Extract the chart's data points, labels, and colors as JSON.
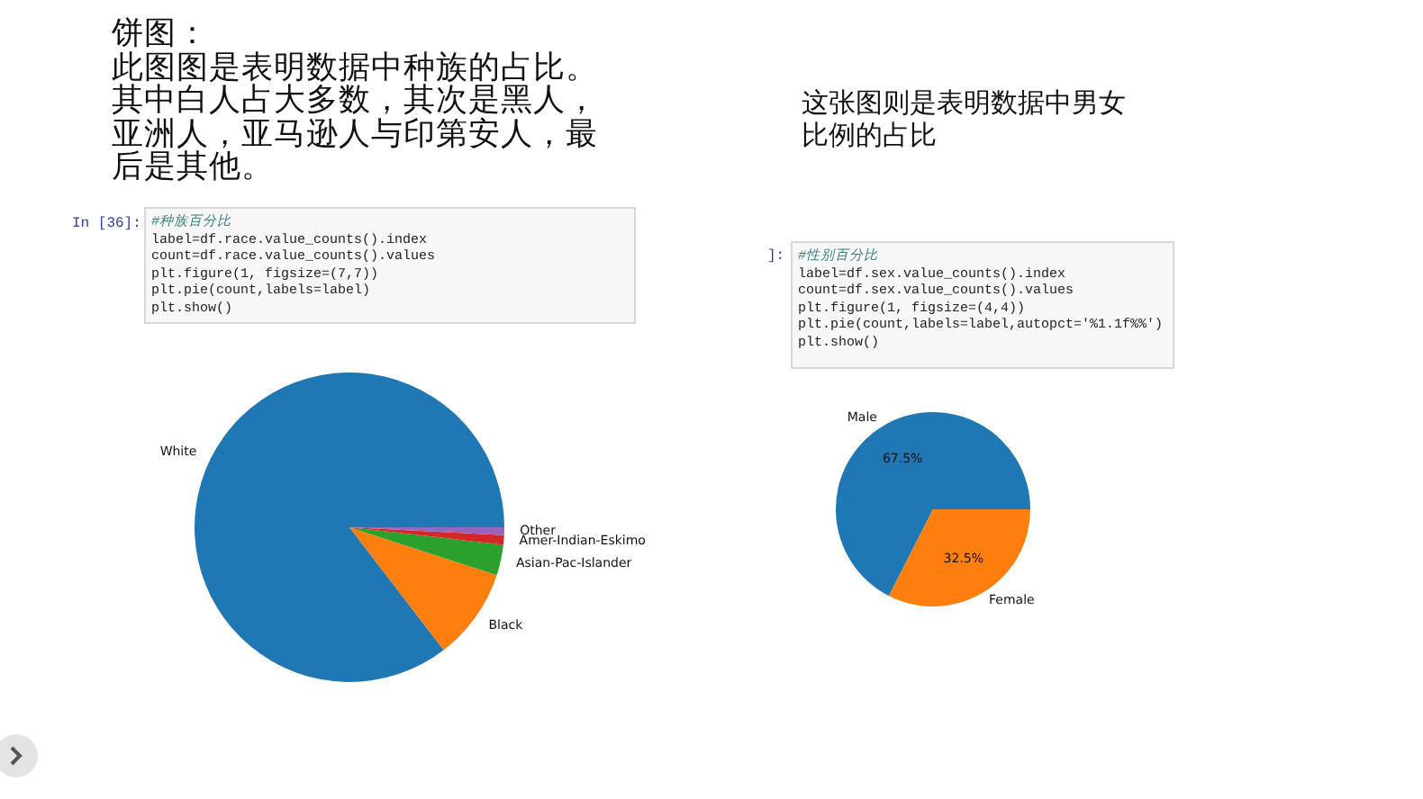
{
  "chart_data": [
    {
      "type": "pie",
      "title": "饼图：",
      "subtitle": "此图图是表明数据中种族的占比。其中白人占大多数，其次是黑人，亚洲人，亚马逊人与印第安人，最后是其他。",
      "annotations": [
        "In [36]:",
        "#种族百分比\nlabel=df.race.value_counts().index\ncount=df.race.value_counts().values\nplt.figure(1, figsize=(7,7))\nplt.pie(count,labels=label)\nplt.show()"
      ],
      "categories": [
        "White",
        "Black",
        "Asian-Pac-Islander",
        "Amer-Indian-Eskimo",
        "Other"
      ],
      "values": [
        85.4,
        9.6,
        3.2,
        1.0,
        0.8
      ],
      "colors": [
        "#1f77b4",
        "#ff7f0e",
        "#2ca02c",
        "#d62728",
        "#9467bd"
      ]
    },
    {
      "type": "pie",
      "title": "这张图则是表明数据中男女比例的占比",
      "annotations": [
        "]:",
        "#性别百分比\nlabel=df.sex.value_counts().index\ncount=df.sex.value_counts().values\nplt.figure(1, figsize=(4,4))\nplt.pie(count,labels=label,autopct='%1.1f%%')\nplt.show()"
      ],
      "categories": [
        "Male",
        "Female"
      ],
      "values": [
        67.5,
        32.5
      ],
      "colors": [
        "#1f77b4",
        "#ff7f0e"
      ],
      "value_labels": [
        "67.5%",
        "32.5%"
      ]
    }
  ]
}
